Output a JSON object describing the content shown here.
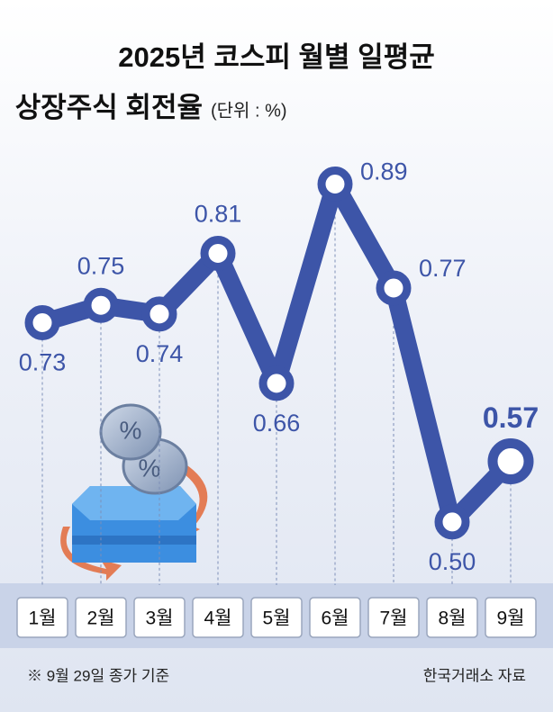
{
  "chart_data": {
    "type": "line",
    "title": "2025년 코스피 월별 일평균",
    "subtitle": "상장주식 회전율",
    "unit": "(단위 : %)",
    "categories": [
      "1월",
      "2월",
      "3월",
      "4월",
      "5월",
      "6월",
      "7월",
      "8월",
      "9월"
    ],
    "values": [
      0.73,
      0.75,
      0.74,
      0.81,
      0.66,
      0.89,
      0.77,
      0.5,
      0.57
    ],
    "value_labels": [
      "0.73",
      "0.75",
      "0.74",
      "0.81",
      "0.66",
      "0.89",
      "0.77",
      "0.50",
      "0.57"
    ],
    "color": "#3d55a8",
    "ylim": [
      0.45,
      0.93
    ],
    "footnote": "※ 9월 29일 종가 기준",
    "source": "한국거래소 자료"
  }
}
